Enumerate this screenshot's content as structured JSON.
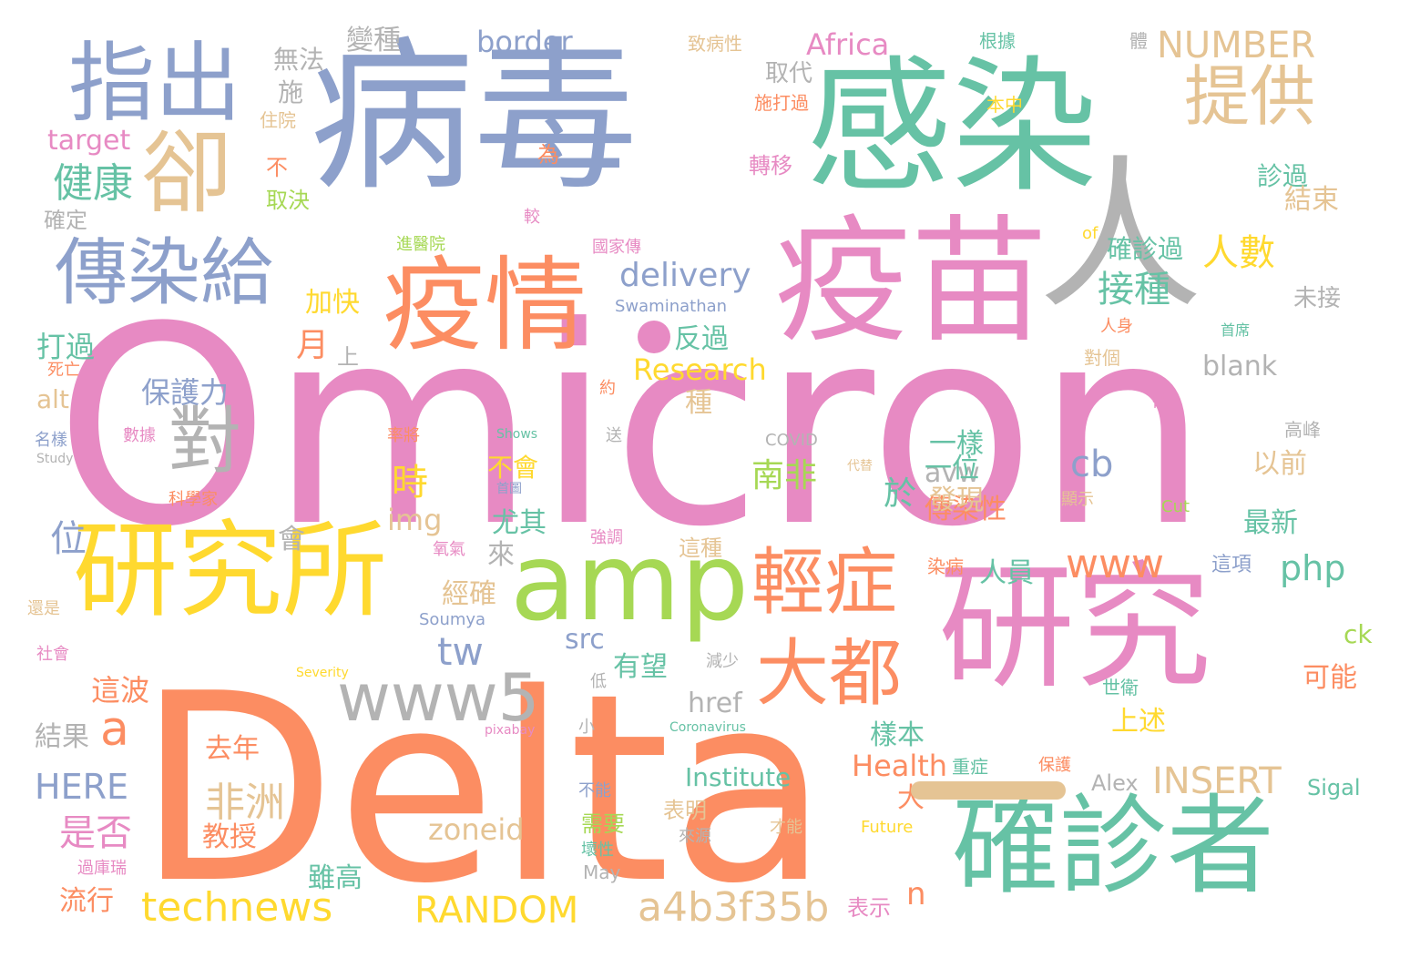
{
  "palette": {
    "blue": "#8da0cb",
    "green": "#66c2a5",
    "orange": "#fc8d62",
    "pink": "#e78ac3",
    "yellow": "#ffd92f",
    "lime": "#a6d854",
    "tan": "#e5c494",
    "gray": "#b3b3b3"
  },
  "words": [
    "Omicron",
    "Delta",
    "病毒",
    "感染",
    "人",
    "疫苗",
    "研究",
    "確診者",
    "研究所",
    "疫情",
    "amp",
    "指出",
    "提供",
    "卻",
    "傳染給",
    "對",
    "輕症",
    "大都",
    "www5",
    "technews",
    "RANDOM",
    "a4b3f35b",
    "www",
    "delivery",
    "INSERT",
    "NUMBER",
    "tw",
    "a",
    "cb",
    "php",
    "Research",
    "Health",
    "HERE",
    "zoneid",
    "Institute",
    "非洲",
    "南非",
    "健康",
    "接種",
    "人數",
    "border",
    "Africa",
    "時",
    "n",
    "img",
    "avw",
    "href",
    "src",
    "blank",
    "target",
    "alt",
    "ck",
    "無法",
    "變種",
    "取代",
    "致病性",
    "根據",
    "體",
    "施",
    "住院",
    "本中",
    "施打過",
    "確定",
    "不",
    "取決",
    "為",
    "轉移",
    "診過",
    "結束",
    "加快",
    "反過",
    "確診過",
    "未接",
    "月",
    "上",
    "打過",
    "死亡",
    "保護力",
    "種",
    "約",
    "破",
    "COVID",
    "名樣",
    "數據",
    "Shows",
    "率將",
    "送",
    "Study",
    "不會",
    "一樣",
    "以前",
    "科學家",
    "首圖",
    "代替",
    "最新",
    "位",
    "會",
    "尤其",
    "經確",
    "人員",
    "來",
    "這種",
    "強調",
    "氧氣",
    "染病",
    "這項",
    "還是",
    "Soumya",
    "社會",
    "有望",
    "這波",
    "減少",
    "可能",
    "低",
    "Severity",
    "上述",
    "世衛",
    "結果",
    "Coronavirus",
    "pixabay",
    "小",
    "樣本",
    "去年",
    "表明",
    "保護",
    "重症",
    "Alex",
    "Sigal",
    "Cut",
    "不能",
    "需要",
    "Future",
    "是否",
    "教授",
    "壞性",
    "來源",
    "才能",
    "May",
    "過庫瑞",
    "流行",
    "雖高",
    "於",
    "表示",
    "進醫院",
    "國家傳",
    "of",
    "Swaminathan",
    "較",
    "人身",
    "對個",
    "高峰",
    "顯示",
    "首席",
    "傳染性",
    "發現",
    "大",
    "一位"
  ]
}
